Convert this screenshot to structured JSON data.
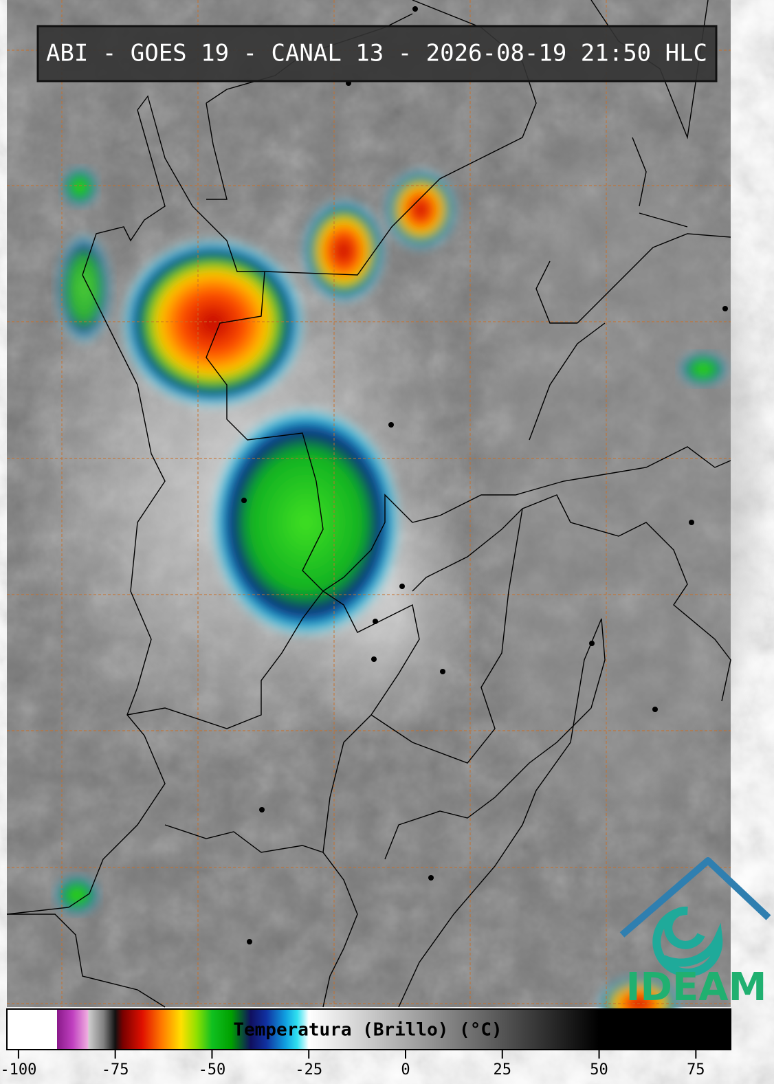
{
  "title": "ABI - GOES 19 - CANAL 13 - 2026-08-19 21:50 HLC",
  "logo": "IDEAM",
  "colorbar": {
    "label": "Temperatura (Brillo) (°C)",
    "lim": [
      -103,
      84
    ],
    "ticks": [
      -100,
      -75,
      -50,
      -25,
      0,
      25,
      50,
      75
    ],
    "colorscale": [
      [
        -103,
        "#ffffff"
      ],
      [
        -90,
        "#ffffff"
      ],
      [
        -90,
        "#8a1a8a"
      ],
      [
        -86,
        "#c040c0"
      ],
      [
        -82,
        "#f0b0e0"
      ],
      [
        -82,
        "#d0d0d0"
      ],
      [
        -78,
        "#808080"
      ],
      [
        -75,
        "#111111"
      ],
      [
        -73,
        "#7a0000"
      ],
      [
        -68,
        "#e01000"
      ],
      [
        -63,
        "#ff7a00"
      ],
      [
        -58,
        "#ffe000"
      ],
      [
        -54,
        "#90e000"
      ],
      [
        -50,
        "#10c020"
      ],
      [
        -45,
        "#00a000"
      ],
      [
        -40,
        "#101060"
      ],
      [
        -36,
        "#1030a0"
      ],
      [
        -31,
        "#10a0e0"
      ],
      [
        -28,
        "#30e0f0"
      ],
      [
        -25,
        "#ffffff"
      ],
      [
        50,
        "#000000"
      ],
      [
        84,
        "#000000"
      ]
    ]
  }
}
